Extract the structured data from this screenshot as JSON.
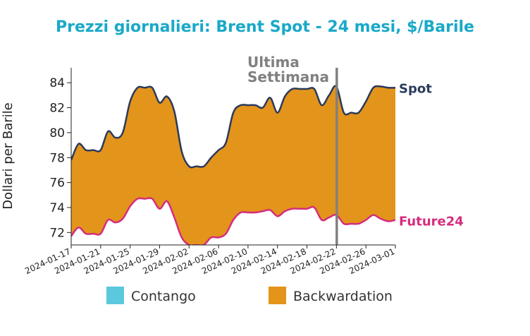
{
  "chart_data": {
    "type": "area",
    "title": "Prezzi giornalieri: Brent Spot - 24 mesi, $/Barile",
    "ylabel": "Dollari per Barile",
    "xlabel": "",
    "ylim": [
      71,
      85.2
    ],
    "yticks": [
      72,
      74,
      76,
      78,
      80,
      82,
      84
    ],
    "x": [
      "2024-01-17",
      "2024-01-18",
      "2024-01-19",
      "2024-01-20",
      "2024-01-21",
      "2024-01-22",
      "2024-01-23",
      "2024-01-24",
      "2024-01-25",
      "2024-01-26",
      "2024-01-27",
      "2024-01-28",
      "2024-01-29",
      "2024-01-30",
      "2024-01-31",
      "2024-02-01",
      "2024-02-02",
      "2024-02-03",
      "2024-02-04",
      "2024-02-05",
      "2024-02-06",
      "2024-02-07",
      "2024-02-08",
      "2024-02-09",
      "2024-02-10",
      "2024-02-11",
      "2024-02-12",
      "2024-02-13",
      "2024-02-14",
      "2024-02-15",
      "2024-02-16",
      "2024-02-17",
      "2024-02-18",
      "2024-02-19",
      "2024-02-20",
      "2024-02-21",
      "2024-02-22",
      "2024-02-23",
      "2024-02-24",
      "2024-02-25",
      "2024-02-26",
      "2024-02-27",
      "2024-02-28",
      "2024-02-29",
      "2024-03-01"
    ],
    "x_tick_labels": [
      "2024-01-17",
      "2024-01-21",
      "2024-01-25",
      "2024-01-29",
      "2024-02-02",
      "2024-02-06",
      "2024-02-10",
      "2024-02-14",
      "2024-02-18",
      "2024-02-22",
      "2024-02-26",
      "2024-03-01"
    ],
    "series": [
      {
        "name": "Spot",
        "color": "#2b3a5c",
        "values": [
          77.8,
          79.1,
          78.6,
          78.6,
          78.6,
          80.1,
          79.6,
          80.0,
          82.5,
          83.6,
          83.6,
          83.6,
          82.4,
          82.9,
          81.7,
          78.5,
          77.3,
          77.3,
          77.3,
          78.0,
          78.6,
          79.2,
          81.6,
          82.2,
          82.2,
          82.2,
          82.0,
          82.8,
          81.6,
          82.9,
          83.5,
          83.5,
          83.5,
          83.5,
          82.2,
          83.0,
          83.7,
          81.6,
          81.6,
          81.6,
          82.5,
          83.6,
          83.7,
          83.6,
          83.6
        ]
      },
      {
        "name": "Future24",
        "color": "#d42d7d",
        "values": [
          71.7,
          72.4,
          71.9,
          71.9,
          71.9,
          73.0,
          72.8,
          73.1,
          74.1,
          74.7,
          74.7,
          74.7,
          73.9,
          74.5,
          73.2,
          71.6,
          71.0,
          71.0,
          71.0,
          71.6,
          71.6,
          71.9,
          73.0,
          73.6,
          73.6,
          73.6,
          73.7,
          73.8,
          73.3,
          73.7,
          73.9,
          73.9,
          73.9,
          74.0,
          73.0,
          73.2,
          73.4,
          72.7,
          72.7,
          72.7,
          73.0,
          73.4,
          73.1,
          72.9,
          73.0
        ]
      }
    ],
    "fills": [
      {
        "name": "Contango",
        "color": "#5bc8dd"
      },
      {
        "name": "Backwardation",
        "color": "#e3941a"
      }
    ],
    "vline": {
      "x": "2024-02-23",
      "label_line1": "Ultima",
      "label_line2": "Settimana",
      "color": "#808080"
    },
    "colors": {
      "title": "#19a9c8",
      "backwardation": "#e3941a",
      "contango": "#5bc8dd",
      "spot": "#2b3a5c",
      "future": "#d42d7d",
      "annotation": "#808080"
    },
    "legend": "bottom"
  }
}
